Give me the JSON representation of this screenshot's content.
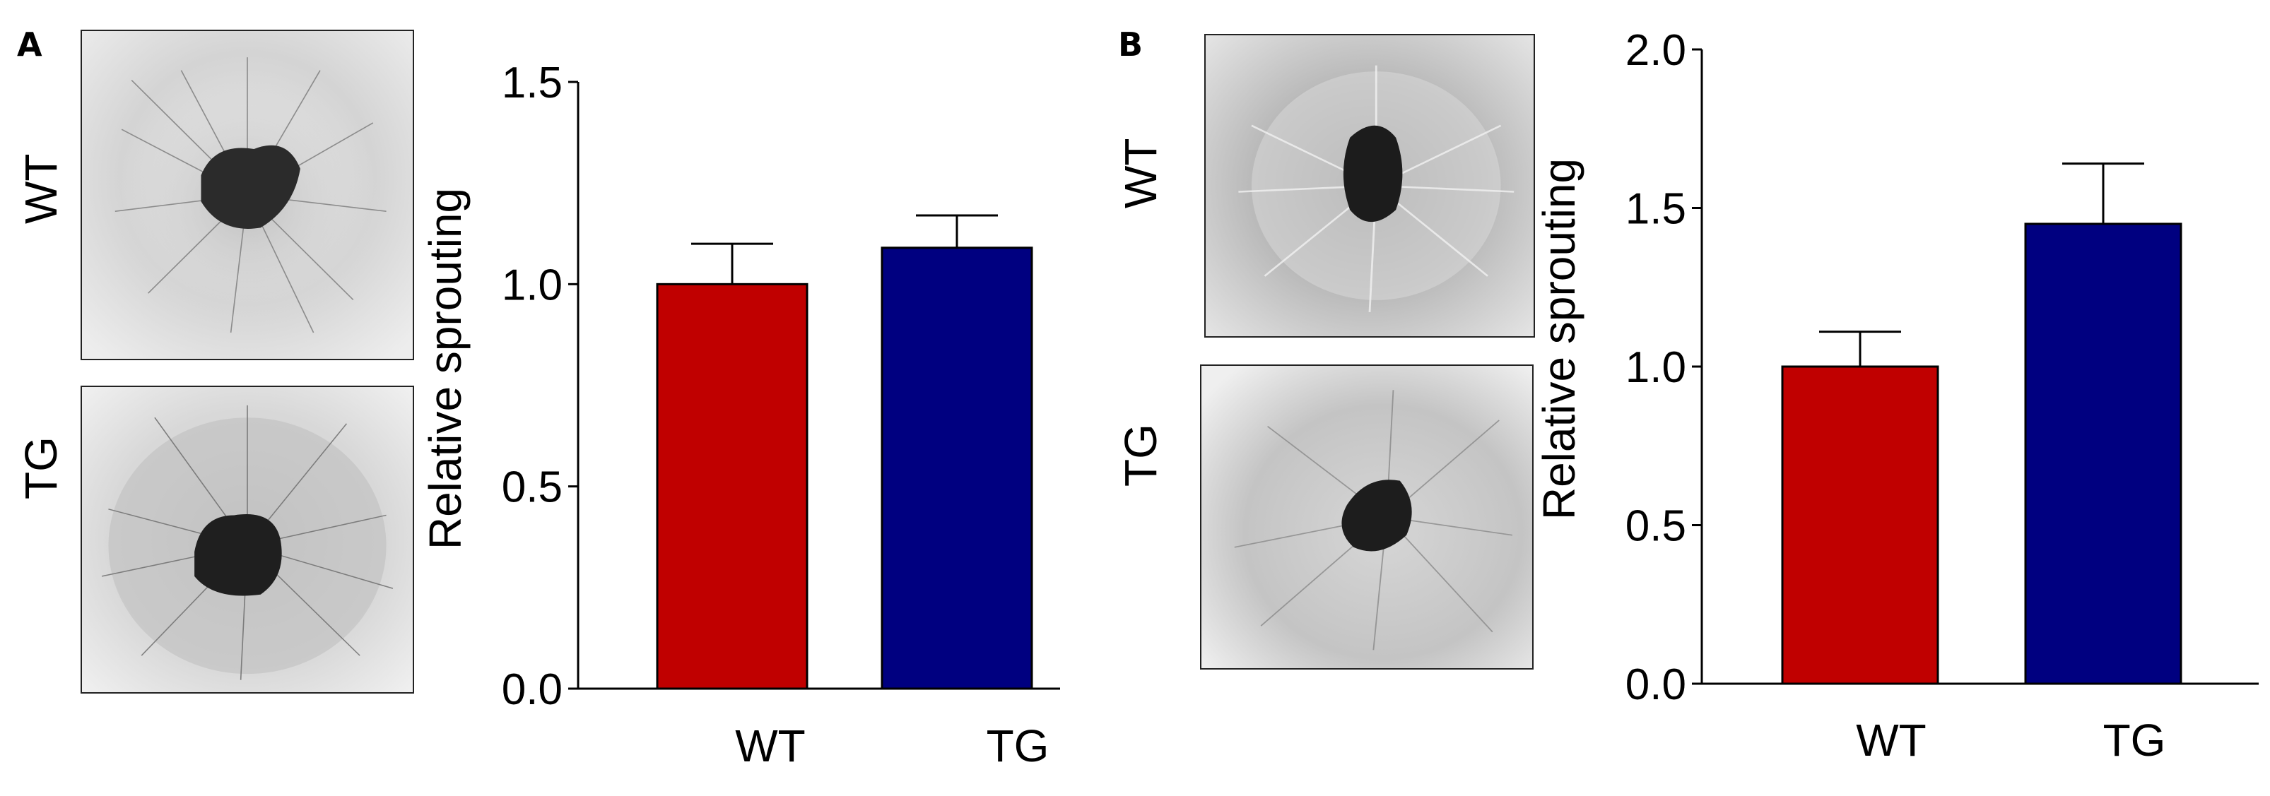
{
  "panels": [
    {
      "letter": "A",
      "row_labels": [
        "WT",
        "TG"
      ],
      "images": [
        {
          "label": "WT",
          "description": "aortic ring sprouting micrograph"
        },
        {
          "label": "TG",
          "description": "aortic ring sprouting micrograph"
        }
      ]
    },
    {
      "letter": "B",
      "row_labels": [
        "WT",
        "TG"
      ],
      "images": [
        {
          "label": "WT",
          "description": "aortic ring sprouting micrograph"
        },
        {
          "label": "TG",
          "description": "aortic ring sprouting micrograph"
        }
      ]
    }
  ],
  "chart_data": [
    {
      "type": "bar",
      "panel": "A",
      "categories": [
        "WT",
        "TG"
      ],
      "values": [
        1.0,
        1.09
      ],
      "errors": [
        0.1,
        0.08
      ],
      "colors": [
        "#c00000",
        "#000080"
      ],
      "title": "",
      "xlabel": "",
      "ylabel": "Relative sprouting",
      "ylim": [
        0,
        1.5
      ],
      "yticks": [
        0.0,
        0.5,
        1.0,
        1.5
      ],
      "ytick_labels": [
        "0.0",
        "0.5",
        "1.0",
        "1.5"
      ]
    },
    {
      "type": "bar",
      "panel": "B",
      "categories": [
        "WT",
        "TG"
      ],
      "values": [
        1.0,
        1.45
      ],
      "errors": [
        0.11,
        0.19
      ],
      "colors": [
        "#c00000",
        "#000080"
      ],
      "title": "",
      "xlabel": "",
      "ylabel": "Relative sprouting",
      "ylim": [
        0,
        2.0
      ],
      "yticks": [
        0.0,
        0.5,
        1.0,
        1.5,
        2.0
      ],
      "ytick_labels": [
        "0.0",
        "0.5",
        "1.0",
        "1.5",
        "2.0"
      ]
    }
  ]
}
